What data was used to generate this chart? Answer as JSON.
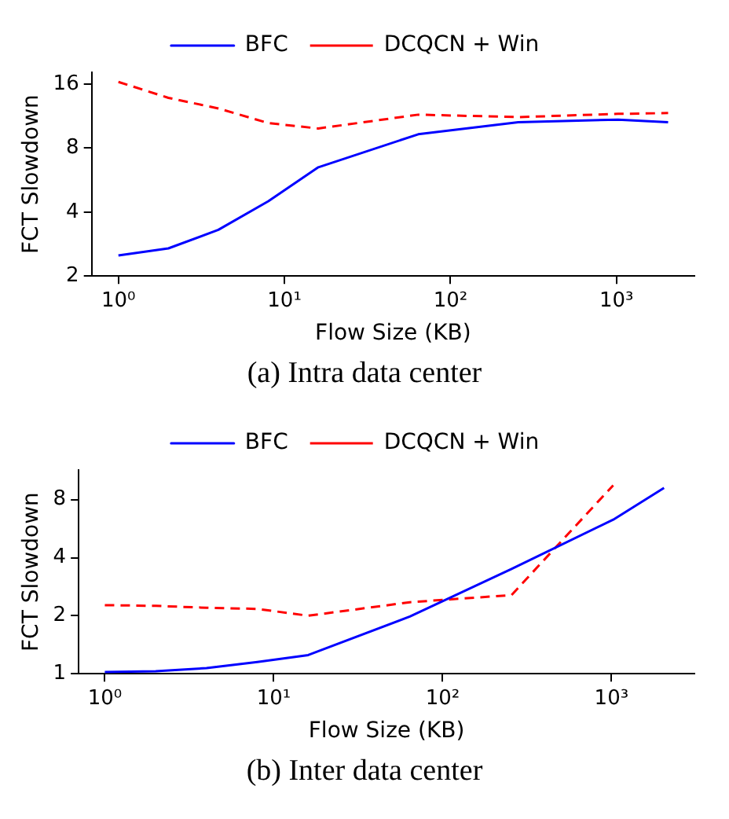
{
  "chart_data": [
    {
      "type": "line",
      "xlabel": "Flow Size (KB)",
      "ylabel": "FCT Slowdown",
      "annotations": [
        "(a) Intra data center"
      ],
      "x": [
        1,
        2,
        4,
        8,
        16,
        64,
        256,
        1024,
        2048
      ],
      "series": [
        {
          "name": "BFC",
          "color": "#0000ff",
          "line_style": "solid",
          "values": [
            2.5,
            2.7,
            3.3,
            4.5,
            6.5,
            9.3,
            10.6,
            10.9,
            10.6
          ]
        },
        {
          "name": "DCQCN + Win",
          "color": "#ff0000",
          "line_style": "dashed",
          "values": [
            16.4,
            13.8,
            12.3,
            10.5,
            9.9,
            11.5,
            11.2,
            11.6,
            11.7
          ]
        }
      ],
      "log": "xy",
      "xlim": [
        0.69,
        2950
      ],
      "ylim": [
        2,
        18.2
      ],
      "xticks": [
        {
          "value": 1,
          "label": "10⁰"
        },
        {
          "value": 10,
          "label": "10¹"
        },
        {
          "value": 100,
          "label": "10²"
        },
        {
          "value": 1000,
          "label": "10³"
        }
      ],
      "yticks": [
        2,
        4,
        8,
        16
      ],
      "grid": false,
      "legend": "top",
      "marker": "none"
    },
    {
      "type": "line",
      "xlabel": "Flow Size (KB)",
      "ylabel": "FCT Slowdown",
      "annotations": [
        "(b) Inter data center"
      ],
      "x": [
        1,
        2,
        4,
        8,
        16,
        64,
        256,
        1024,
        2048
      ],
      "series": [
        {
          "name": "BFC",
          "color": "#0000ff",
          "line_style": "solid",
          "values": [
            1.02,
            1.03,
            1.07,
            1.15,
            1.25,
            1.98,
            3.5,
            6.3,
            9.2
          ]
        },
        {
          "name": "DCQCN + Win",
          "color": "#ff0000",
          "line_style": "dashed",
          "values": [
            2.27,
            2.25,
            2.2,
            2.17,
            2.0,
            2.35,
            2.56,
            9.5,
            null
          ]
        }
      ],
      "log": "xy",
      "xlim": [
        0.7,
        3100
      ],
      "ylim": [
        1,
        11.4
      ],
      "xticks": [
        {
          "value": 1,
          "label": "10⁰"
        },
        {
          "value": 10,
          "label": "10¹"
        },
        {
          "value": 100,
          "label": "10²"
        },
        {
          "value": 1000,
          "label": "10³"
        }
      ],
      "yticks": [
        1,
        2,
        4,
        8
      ],
      "grid": false,
      "legend": "top",
      "marker": "none"
    }
  ]
}
